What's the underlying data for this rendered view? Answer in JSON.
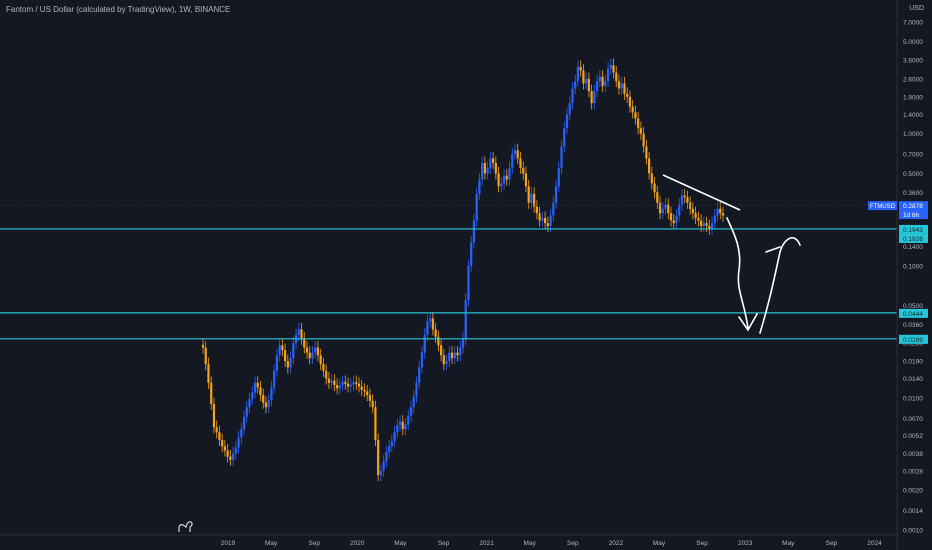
{
  "header": {
    "title": "Fantom / US Dollar (calculated by TradingView), 1W, BINANCE",
    "currency": "USD"
  },
  "colors": {
    "background": "#141823",
    "up": "#2962ff",
    "down": "#f7a21b",
    "hline": "#26c6da",
    "drawing": "#ffffff",
    "price_badge": "#2962ff",
    "level_badge": "#26c6da",
    "axis_text": "#b2b5be"
  },
  "chart_data": {
    "type": "candlestick",
    "scale": "log",
    "y_ticks": [
      "7.0000",
      "5.0000",
      "3.6000",
      "2.6000",
      "1.9000",
      "1.4000",
      "1.0000",
      "0.7000",
      "0.5000",
      "0.3600",
      "0.1400",
      "0.1000",
      "0.0500",
      "0.0360",
      "0.0260",
      "0.0190",
      "0.0140",
      "0.0100",
      "0.0070",
      "0.0052",
      "0.0038",
      "0.0028",
      "0.0020",
      "0.0014",
      "0.0010"
    ],
    "x_ticks": [
      "2019",
      "May",
      "Sep",
      "2020",
      "May",
      "Sep",
      "2021",
      "May",
      "Sep",
      "2022",
      "May",
      "Sep",
      "2023",
      "May",
      "Sep",
      "2024"
    ],
    "series": [
      {
        "name": "FTMUSD",
        "weekly_closes": [
          0.024,
          0.018,
          0.013,
          0.009,
          0.006,
          0.0055,
          0.0048,
          0.0043,
          0.004,
          0.0036,
          0.0034,
          0.0038,
          0.0042,
          0.005,
          0.0058,
          0.0072,
          0.0085,
          0.0098,
          0.011,
          0.013,
          0.012,
          0.0105,
          0.0092,
          0.0085,
          0.0096,
          0.012,
          0.016,
          0.021,
          0.025,
          0.023,
          0.019,
          0.017,
          0.02,
          0.026,
          0.03,
          0.033,
          0.028,
          0.024,
          0.022,
          0.02,
          0.022,
          0.024,
          0.021,
          0.018,
          0.016,
          0.014,
          0.013,
          0.0135,
          0.0125,
          0.0118,
          0.0125,
          0.0132,
          0.0128,
          0.0122,
          0.0126,
          0.0132,
          0.0128,
          0.0122,
          0.0115,
          0.0112,
          0.0105,
          0.0095,
          0.0085,
          0.0048,
          0.0026,
          0.0028,
          0.0033,
          0.0039,
          0.0043,
          0.0047,
          0.0055,
          0.0062,
          0.0066,
          0.0058,
          0.0063,
          0.0073,
          0.0085,
          0.0102,
          0.013,
          0.017,
          0.022,
          0.03,
          0.038,
          0.04,
          0.033,
          0.029,
          0.025,
          0.021,
          0.018,
          0.019,
          0.022,
          0.02,
          0.022,
          0.021,
          0.024,
          0.028,
          0.055,
          0.1,
          0.15,
          0.22,
          0.35,
          0.45,
          0.6,
          0.5,
          0.55,
          0.65,
          0.6,
          0.5,
          0.4,
          0.42,
          0.48,
          0.45,
          0.55,
          0.7,
          0.75,
          0.65,
          0.55,
          0.5,
          0.4,
          0.3,
          0.35,
          0.28,
          0.25,
          0.22,
          0.23,
          0.21,
          0.2,
          0.24,
          0.3,
          0.4,
          0.55,
          0.8,
          1.1,
          1.4,
          1.7,
          2.2,
          2.5,
          3.2,
          3.0,
          2.4,
          2.6,
          2.1,
          1.7,
          2.1,
          2.5,
          2.7,
          2.3,
          2.5,
          3.1,
          3.3,
          2.9,
          2.5,
          2.2,
          2.4,
          2.0,
          1.9,
          1.6,
          1.45,
          1.3,
          1.1,
          1.0,
          0.8,
          0.65,
          0.5,
          0.42,
          0.36,
          0.3,
          0.25,
          0.27,
          0.29,
          0.25,
          0.22,
          0.21,
          0.24,
          0.29,
          0.34,
          0.33,
          0.3,
          0.27,
          0.25,
          0.23,
          0.22,
          0.2,
          0.21,
          0.2,
          0.19,
          0.21,
          0.24,
          0.27,
          0.25,
          0.24
        ],
        "last_price": "0.2878"
      }
    ],
    "price_badge": {
      "symbol": "FTMUSD",
      "value": "0.2878",
      "countdown": "1d 6h"
    },
    "horizontal_levels": [
      {
        "value": 0.19,
        "labels": [
          "0.1943",
          "0.1926"
        ]
      },
      {
        "value": 0.044,
        "labels": [
          "0.0444"
        ]
      },
      {
        "value": 0.028,
        "labels": [
          "0.0289"
        ]
      }
    ],
    "drawings": [
      "descending trendline",
      "projected path arrow"
    ],
    "grid": false,
    "legend": "none"
  }
}
